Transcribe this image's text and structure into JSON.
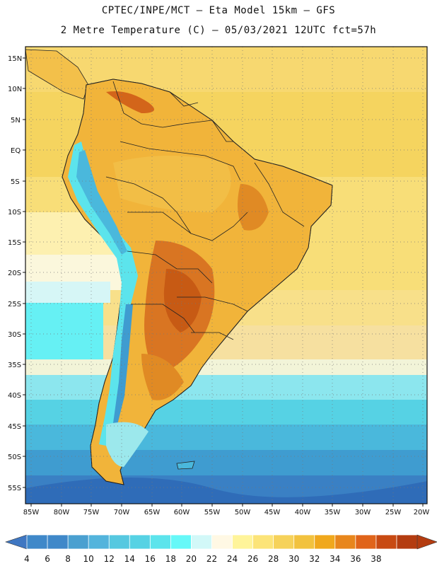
{
  "header": {
    "line1": "CPTEC/INPE/MCT –  Eta Model 15km – GFS",
    "line2": "2 Metre Temperature (C) – 05/03/2021 12UTC fct=57h"
  },
  "map": {
    "lat_labels": [
      "15N",
      "10N",
      "5N",
      "EQ",
      "5S",
      "10S",
      "15S",
      "20S",
      "25S",
      "30S",
      "35S",
      "40S",
      "45S",
      "50S",
      "55S"
    ],
    "lon_labels": [
      "85W",
      "80W",
      "75W",
      "70W",
      "65W",
      "60W",
      "55W",
      "50W",
      "45W",
      "40W",
      "35W",
      "30W",
      "25W",
      "20W"
    ]
  },
  "colorbar": {
    "labels": [
      "4",
      "6",
      "8",
      "10",
      "12",
      "14",
      "16",
      "18",
      "20",
      "22",
      "24",
      "26",
      "28",
      "30",
      "32",
      "34",
      "36",
      "38"
    ],
    "colors": [
      "#3f88c9",
      "#3f88c9",
      "#4aa0d0",
      "#53b4dc",
      "#56c8e0",
      "#56d2e4",
      "#5ce4ec",
      "#66f8f8",
      "#d2f8f8",
      "#fff8e4",
      "#fff49a",
      "#fce478",
      "#f6d25a",
      "#f2c23e",
      "#f0a81c",
      "#e8861c",
      "#e0641a",
      "#c84a12",
      "#b43c10"
    ],
    "end_low": "#3f77c2",
    "end_high": "#b43c10"
  }
}
